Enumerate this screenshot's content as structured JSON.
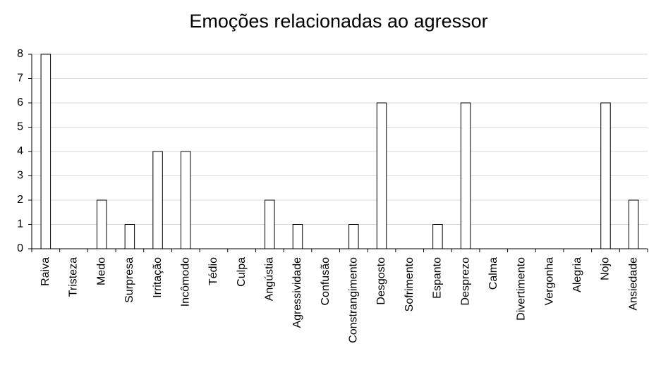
{
  "chart_data": {
    "type": "bar",
    "title": "Emoções relacionadas ao agressor",
    "categories": [
      "Raiva",
      "Tristeza",
      "Medo",
      "Surpresa",
      "Irritação",
      "Incômodo",
      "Tédio",
      "Culpa",
      "Angústia",
      "Agressividade",
      "Confusão",
      "Constrangimento",
      "Desgosto",
      "Sofrimento",
      "Espanto",
      "Desprezo",
      "Calma",
      "Divertimento",
      "Vergonha",
      "Alegria",
      "Nojo",
      "Ansiedade"
    ],
    "values": [
      8,
      0,
      2,
      1,
      4,
      4,
      0,
      0,
      2,
      1,
      0,
      1,
      6,
      0,
      1,
      6,
      0,
      0,
      0,
      0,
      6,
      2
    ],
    "color": "#ffffff",
    "ylim": [
      0,
      8
    ],
    "yticks": [
      0,
      1,
      2,
      3,
      4,
      5,
      6,
      7,
      8
    ],
    "grid": true
  }
}
